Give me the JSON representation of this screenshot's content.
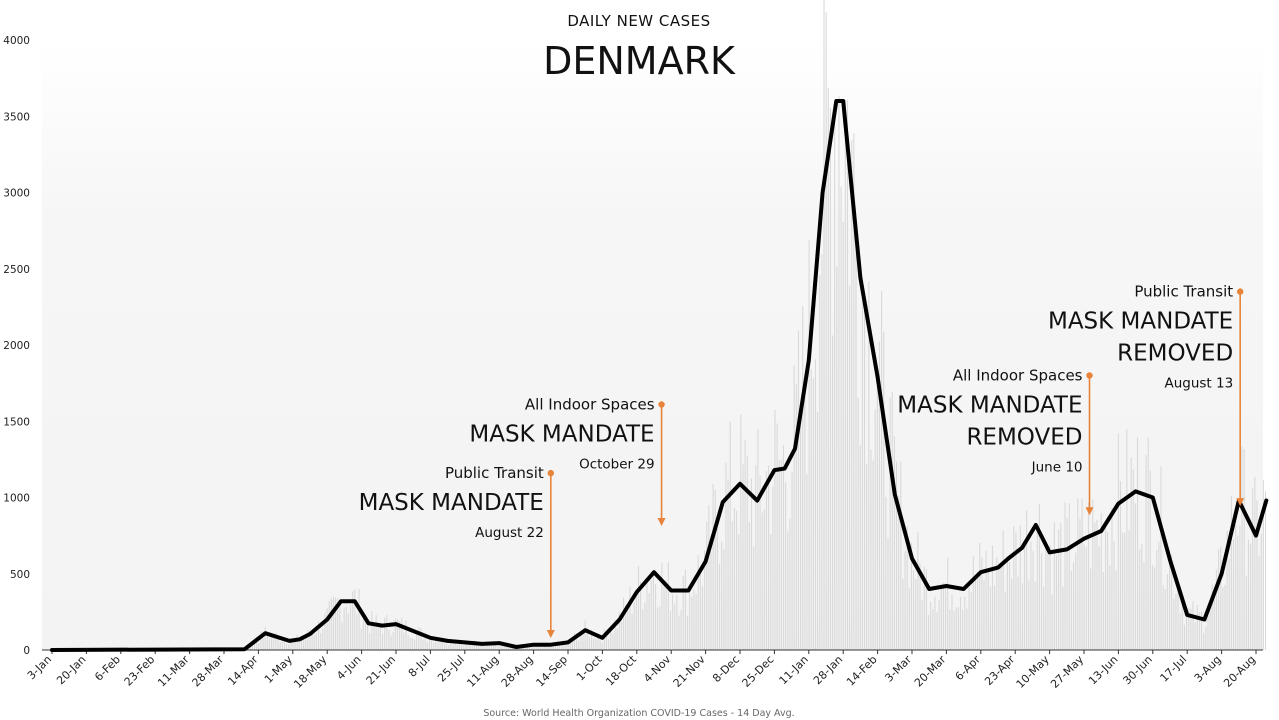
{
  "chart_data": {
    "type": "line",
    "subtitle": "DAILY NEW CASES",
    "title": "DENMARK",
    "source": "Source: World Health Organization COVID-19 Cases - 14 Day Avg.",
    "ylim": [
      0,
      4000
    ],
    "y_ticks": [
      0,
      500,
      1000,
      1500,
      2000,
      2500,
      3000,
      3500,
      4000
    ],
    "x_labels": [
      "3-Jan",
      "20-Jan",
      "6-Feb",
      "23-Feb",
      "11-Mar",
      "28-Mar",
      "14-Apr",
      "1-May",
      "18-May",
      "4-Jun",
      "21-Jun",
      "8-Jul",
      "25-Jul",
      "11-Aug",
      "28-Aug",
      "14-Sep",
      "1-Oct",
      "18-Oct",
      "4-Nov",
      "21-Nov",
      "8-Dec",
      "25-Dec",
      "11-Jan",
      "28-Jan",
      "14-Feb",
      "3-Mar",
      "20-Mar",
      "6-Apr",
      "23-Apr",
      "10-May",
      "27-May",
      "13-Jun",
      "30-Jun",
      "17-Jul",
      "3-Aug",
      "20-Aug"
    ],
    "series": [
      {
        "line_color": "#000000",
        "bar_color": "#d9d9d9",
        "x_index": [
          0,
          5.6,
          6.2,
          6.9,
          7.2,
          7.5,
          8,
          8.4,
          8.8,
          9.2,
          9.6,
          10,
          11,
          11.5,
          12.5,
          13,
          13.5,
          14,
          14.5,
          15,
          15.5,
          16,
          16.5,
          17,
          17.5,
          18,
          18.5,
          19,
          19.5,
          20,
          20.5,
          21,
          21.3,
          21.6,
          22,
          22.4,
          22.8,
          23,
          23.5,
          24,
          24.5,
          25,
          25.5,
          26,
          26.5,
          27,
          27.5,
          27.8,
          28.2,
          28.6,
          29,
          29.5,
          30,
          30.5,
          31,
          31.5,
          32,
          32.5,
          33,
          33.5,
          34,
          34.5,
          35,
          35.3
        ],
        "values": [
          0,
          5,
          110,
          60,
          70,
          105,
          200,
          320,
          320,
          175,
          160,
          170,
          80,
          60,
          40,
          45,
          20,
          35,
          35,
          50,
          130,
          80,
          200,
          380,
          510,
          390,
          390,
          580,
          970,
          1090,
          980,
          1180,
          1190,
          1320,
          1900,
          3000,
          3600,
          3600,
          2440,
          1790,
          1020,
          600,
          400,
          420,
          400,
          510,
          540,
          600,
          670,
          820,
          640,
          660,
          730,
          780,
          960,
          1040,
          1000,
          590,
          230,
          200,
          500,
          980,
          750,
          980
        ]
      }
    ],
    "annotations": [
      {
        "line1": "Public Transit",
        "line2": "MASK MANDATE",
        "line3": "",
        "date": "August 22",
        "x_index": 14.5,
        "y_top": 1160,
        "y_bottom": 85
      },
      {
        "line1": "All Indoor Spaces",
        "line2": "MASK MANDATE",
        "line3": "",
        "date": "October 29",
        "x_index": 17.72,
        "y_top": 1610,
        "y_bottom": 820
      },
      {
        "line1": "All Indoor Spaces",
        "line2": "MASK MANDATE",
        "line3": "REMOVED",
        "date": "June 10",
        "x_index": 30.16,
        "y_top": 1800,
        "y_bottom": 890
      },
      {
        "line1": "Public Transit",
        "line2": "MASK MANDATE",
        "line3": "REMOVED",
        "date": "August 13",
        "x_index": 34.54,
        "y_top": 2350,
        "y_bottom": 950
      }
    ],
    "annotation_color": "#e8843a"
  }
}
